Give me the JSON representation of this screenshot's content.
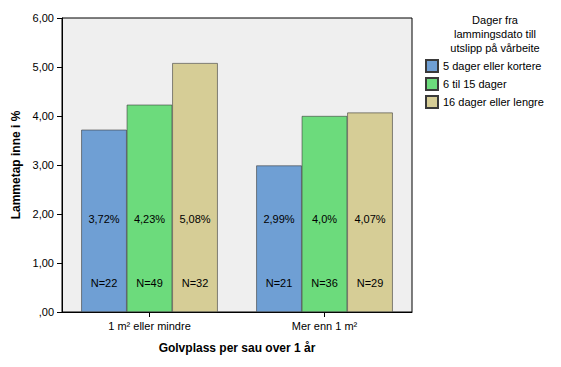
{
  "chart_data": {
    "type": "bar",
    "x_label": "Golvplass per sau over 1 år",
    "y_label": "Lammetap inne i %",
    "legend_title": "Dager fra\nlammingsdato till\nutslipp på vårbeite",
    "categories": [
      "1 m² eller mindre",
      "Mer enn 1 m²"
    ],
    "series": [
      {
        "name": "5 dager eller kortere",
        "color": "#6f9fd4",
        "values": [
          3.72,
          2.99
        ],
        "value_labels": [
          "3,72%",
          "2,99%"
        ],
        "count_labels": [
          "N=22",
          "N=21"
        ]
      },
      {
        "name": "6 til 15 dager",
        "color": "#6cdb7c",
        "values": [
          4.23,
          4.0
        ],
        "value_labels": [
          "4,23%",
          "4,0%"
        ],
        "count_labels": [
          "N=49",
          "N=36"
        ]
      },
      {
        "name": "16 dager eller lengre",
        "color": "#d6cd96",
        "values": [
          5.08,
          4.07
        ],
        "value_labels": [
          "5,08%",
          "4,07%"
        ],
        "count_labels": [
          "N=32",
          "N=29"
        ]
      }
    ],
    "ylim": [
      0,
      6
    ],
    "yticks": [
      {
        "value": 0,
        "label": ",00"
      },
      {
        "value": 1,
        "label": "1,00"
      },
      {
        "value": 2,
        "label": "2,00"
      },
      {
        "value": 3,
        "label": "3,00"
      },
      {
        "value": 4,
        "label": "4,00"
      },
      {
        "value": 5,
        "label": "5,00"
      },
      {
        "value": 6,
        "label": "6,00"
      }
    ],
    "grid": false,
    "legend": "right",
    "data_labels": true
  }
}
